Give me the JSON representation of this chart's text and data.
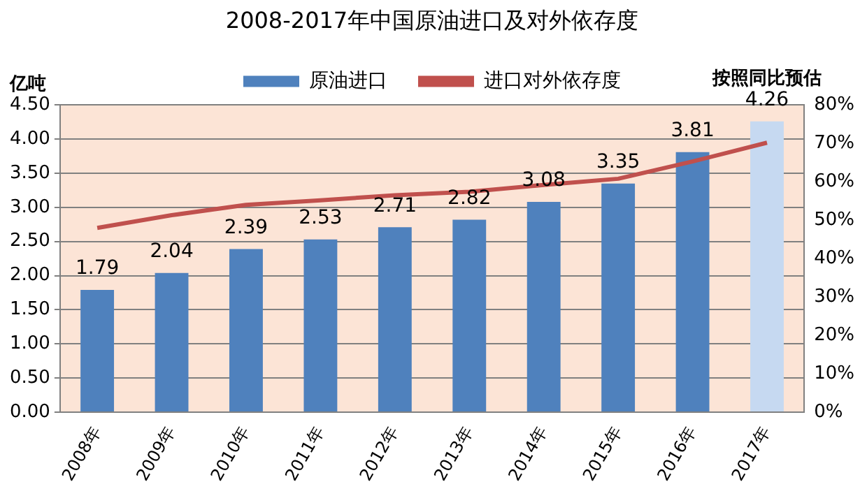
{
  "chart_data": {
    "type": "bar",
    "title": "2008-2017年中国原油进口及对外依存度",
    "ylabel": "亿吨",
    "categories": [
      "2008年",
      "2009年",
      "2010年",
      "2011年",
      "2012年",
      "2013年",
      "2014年",
      "2015年",
      "2016年",
      "2017年"
    ],
    "series": [
      {
        "name": "原油进口",
        "color": "#4f81bd",
        "colors": [
          "#4f81bd",
          "#4f81bd",
          "#4f81bd",
          "#4f81bd",
          "#4f81bd",
          "#4f81bd",
          "#4f81bd",
          "#4f81bd",
          "#4f81bd",
          "#c6d9f1"
        ],
        "values": [
          1.79,
          2.04,
          2.39,
          2.53,
          2.71,
          2.82,
          3.08,
          3.35,
          3.81,
          4.26
        ],
        "value_labels": [
          "1.79",
          "2.04",
          "2.39",
          "2.53",
          "2.71",
          "2.82",
          "3.08",
          "3.35",
          "3.81",
          "4.26"
        ]
      },
      {
        "name": "进口对外依存度",
        "type": "line",
        "axis": "y2",
        "color": "#c0504d",
        "values": [
          48,
          51.3,
          54,
          55.2,
          56.5,
          57.4,
          59.2,
          60.8,
          65.3,
          70.2
        ]
      }
    ],
    "annotations": [
      {
        "text": "按照同比预估",
        "x": "2017年",
        "y": 4.26
      }
    ],
    "ylim": [
      0,
      4.5
    ],
    "yticks": [
      {
        "value": 0,
        "label": "0.00"
      },
      {
        "value": 0.5,
        "label": "0.50"
      },
      {
        "value": 1,
        "label": "1.00"
      },
      {
        "value": 1.5,
        "label": "1.50"
      },
      {
        "value": 2,
        "label": "2.00"
      },
      {
        "value": 2.5,
        "label": "2.50"
      },
      {
        "value": 3,
        "label": "3.00"
      },
      {
        "value": 3.5,
        "label": "3.50"
      },
      {
        "value": 4,
        "label": "4.00"
      },
      {
        "value": 4.5,
        "label": "4.50"
      }
    ],
    "y2lim": [
      0,
      80
    ],
    "y2ticks": [
      {
        "value": 0,
        "label": "0%"
      },
      {
        "value": 10,
        "label": "10%"
      },
      {
        "value": 20,
        "label": "20%"
      },
      {
        "value": 30,
        "label": "30%"
      },
      {
        "value": 40,
        "label": "40%"
      },
      {
        "value": 50,
        "label": "50%"
      },
      {
        "value": 60,
        "label": "60%"
      },
      {
        "value": 70,
        "label": "70%"
      },
      {
        "value": 80,
        "label": "80%"
      }
    ],
    "grid": "y",
    "legend": "top",
    "marker": "none",
    "line_style": "solid"
  }
}
